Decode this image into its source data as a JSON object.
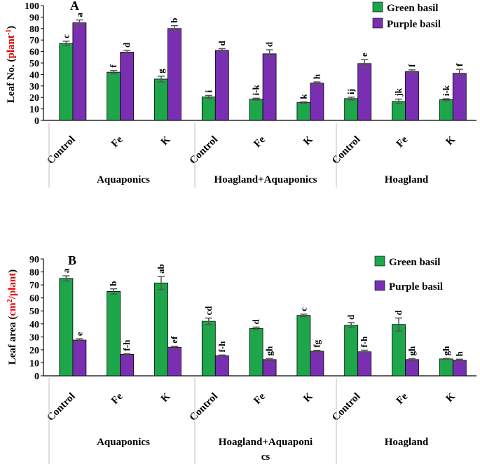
{
  "colors": {
    "green": "#1ea64a",
    "purple": "#7a2fb2",
    "error": "#555555",
    "axis": "#000000",
    "divider": "#bfbfbf",
    "red": "#e00000"
  },
  "chart_data": [
    {
      "type": "bar",
      "panel_label": "A",
      "ylabel_prefix": "Leaf No. (",
      "ylabel_highlight": "plant",
      "ylabel_sup": "-1",
      "ylabel_suffix": ")",
      "ylim": [
        0,
        100
      ],
      "ytick_step": 10,
      "yticks": [
        "0",
        "10",
        "20",
        "30",
        "40",
        "50",
        "60",
        "70",
        "80",
        "90",
        "100"
      ],
      "grid": false,
      "legend_position": "top-right",
      "groups": [
        "Aquaponics",
        "Hoagland+Aquaponics",
        "Hoagland"
      ],
      "categories": [
        "Control",
        "Fe",
        "K",
        "Control",
        "Fe",
        "K",
        "Control",
        "Fe",
        "K"
      ],
      "series": [
        {
          "name": "Green basil",
          "values": [
            67,
            42,
            36,
            20.5,
            18.5,
            15.5,
            19,
            16.5,
            18
          ],
          "errors": [
            2,
            1.5,
            2.5,
            1.2,
            0.8,
            0.6,
            1.2,
            2,
            0.8
          ],
          "letters": [
            "c",
            "f",
            "g",
            "i",
            "i-k",
            "k",
            "ij",
            "jk",
            "i-k"
          ]
        },
        {
          "name": "Purple basil",
          "values": [
            85,
            59.5,
            80,
            61,
            58,
            32.5,
            49.5,
            42.5,
            41
          ],
          "errors": [
            2.5,
            1.5,
            2.5,
            1.5,
            3.5,
            1,
            3.5,
            1.5,
            3.5
          ],
          "letters": [
            "a",
            "d",
            "b",
            "d",
            "d",
            "h",
            "e",
            "f",
            "f"
          ]
        }
      ]
    },
    {
      "type": "bar",
      "panel_label": "B",
      "ylabel_prefix": "Leaf area (",
      "ylabel_highlight": "cm",
      "ylabel_sup": "2",
      "ylabel_highlight2": "/plant",
      "ylabel_suffix": ")",
      "ylim": [
        0,
        90
      ],
      "ytick_step": 10,
      "yticks": [
        "0",
        "10",
        "20",
        "30",
        "40",
        "50",
        "60",
        "70",
        "80",
        "90"
      ],
      "grid": false,
      "legend_position": "top-right",
      "groups": [
        "Aquaponics",
        "Hoagland+Aquaponi",
        "cs",
        "Hoagland"
      ],
      "categories": [
        "Control",
        "Fe",
        "K",
        "Control",
        "Fe",
        "K",
        "Control",
        "Fe",
        "K"
      ],
      "series": [
        {
          "name": "Green basil",
          "values": [
            75,
            65,
            71.5,
            42,
            36.5,
            46.5,
            39,
            39.5,
            13
          ],
          "errors": [
            2,
            2,
            5,
            2.5,
            1,
            1,
            2,
            5,
            0.4
          ],
          "letters": [
            "a",
            "b",
            "ab",
            "cd",
            "d",
            "c",
            "d",
            "d",
            "gh"
          ]
        },
        {
          "name": "Purple basil",
          "values": [
            27.5,
            16.5,
            22,
            15.5,
            12.5,
            19,
            18.5,
            12.5,
            12
          ],
          "errors": [
            1,
            0.5,
            0.8,
            0.5,
            0.8,
            0.6,
            1.2,
            0.8,
            0.8
          ],
          "letters": [
            "e",
            "f-h",
            "ef",
            "f-h",
            "gh",
            "fg",
            "f-h",
            "gh",
            "h"
          ]
        }
      ]
    }
  ]
}
